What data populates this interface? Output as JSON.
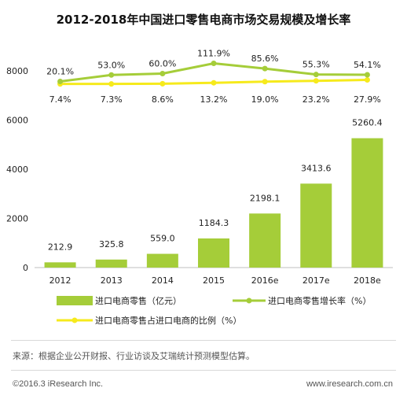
{
  "chart_data": {
    "type": "bar",
    "title": "2012-2018年中国进口零售电商市场交易规模及增长率",
    "categories": [
      "2012",
      "2013",
      "2014",
      "2015",
      "2016e",
      "2017e",
      "2018e"
    ],
    "series": [
      {
        "name": "进口电商零售（亿元）",
        "type": "bar",
        "values": [
          212.9,
          325.8,
          559.0,
          1184.3,
          2198.1,
          3413.6,
          5260.4
        ],
        "labels": [
          "212.9",
          "325.8",
          "559.0",
          "1184.3",
          "2198.1",
          "3413.6",
          "5260.4"
        ],
        "color": "#a5cd39"
      },
      {
        "name": "进口电商零售增长率（%）",
        "type": "line",
        "values": [
          20.1,
          53.0,
          60.0,
          111.9,
          85.6,
          55.3,
          54.1
        ],
        "labels": [
          "20.1%",
          "53.0%",
          "60.0%",
          "111.9%",
          "85.6%",
          "55.3%",
          "54.1%"
        ],
        "color": "#a5cd39"
      },
      {
        "name": "进口电商零售占进口电商的比例（%）",
        "type": "line",
        "values": [
          7.4,
          7.3,
          8.6,
          13.2,
          19.0,
          23.2,
          27.9
        ],
        "labels": [
          "7.4%",
          "7.3%",
          "8.6%",
          "13.2%",
          "19.0%",
          "23.2%",
          "27.9%"
        ],
        "color": "#f6ea1c"
      }
    ],
    "yticks": [
      "0",
      "2000",
      "4000",
      "6000",
      "8000"
    ],
    "ylim": [
      0,
      8800
    ]
  },
  "footer": {
    "source": "来源：根据企业公开财报、行业访谈及艾瑞统计预测模型估算。",
    "copyright": "©2016.3 iResearch Inc.",
    "website": "www.iresearch.com.cn"
  }
}
